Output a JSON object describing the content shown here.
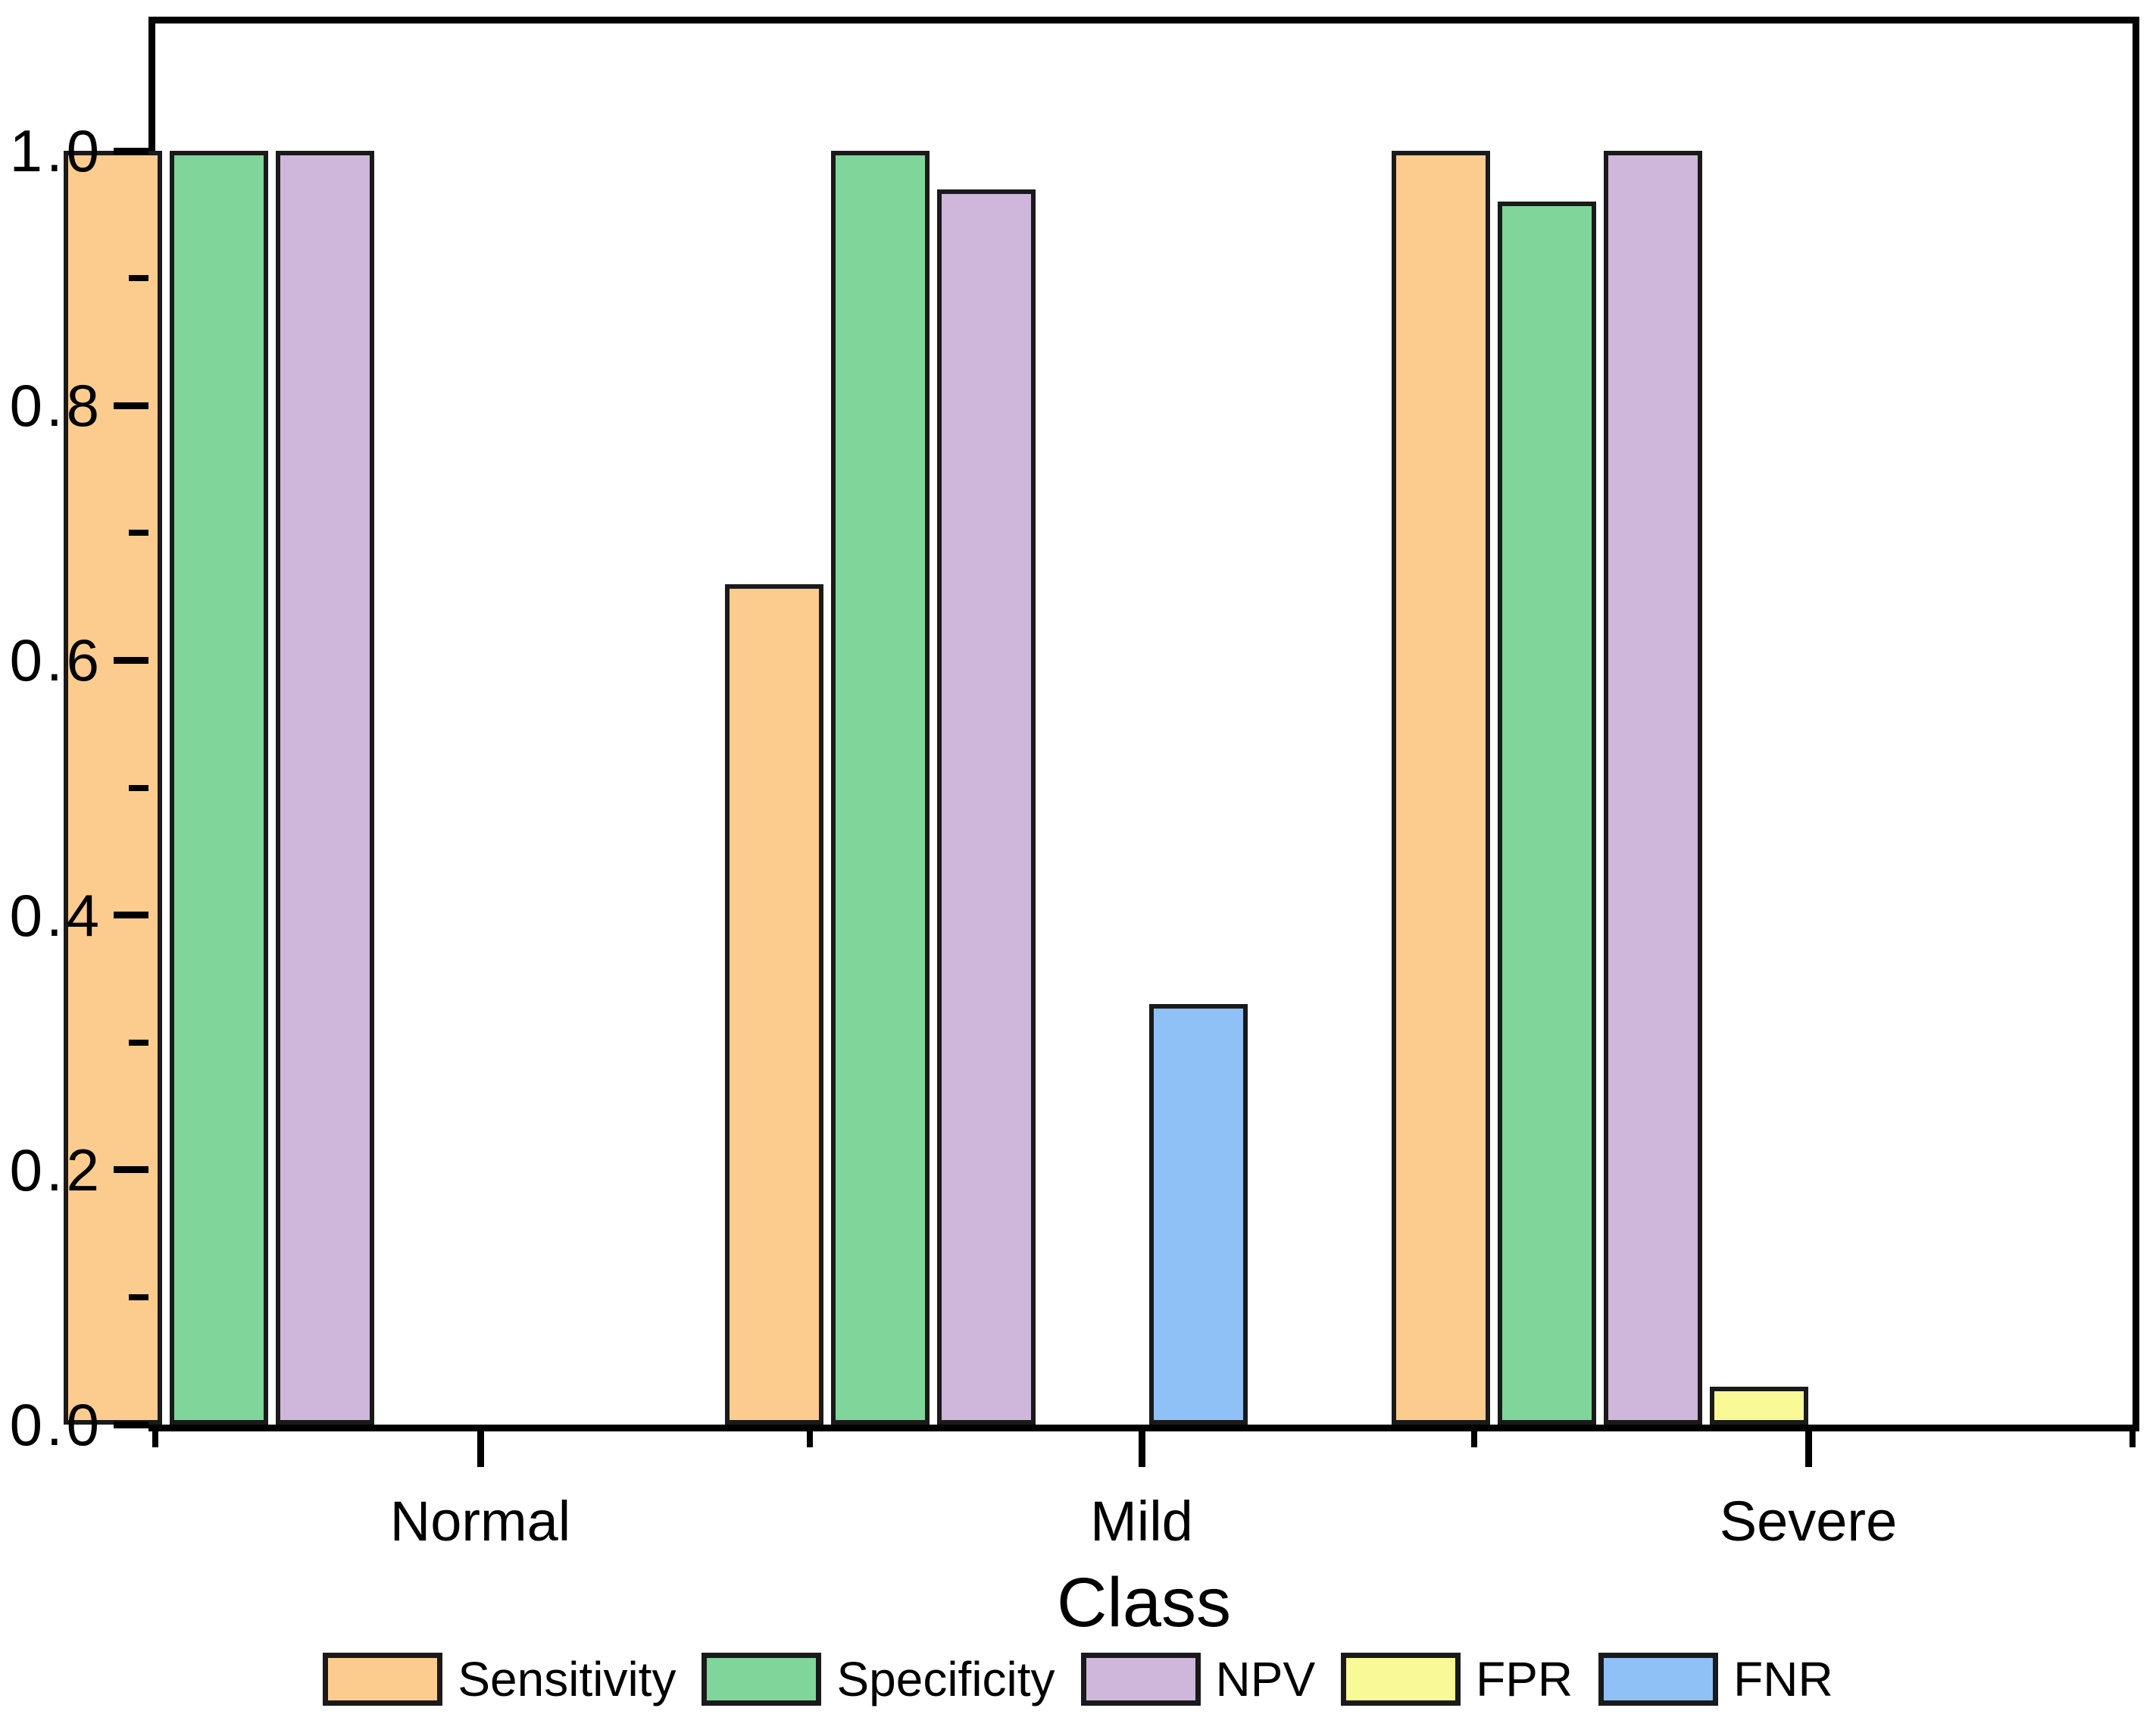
{
  "chart_data": {
    "type": "bar",
    "title": "",
    "xlabel": "Class",
    "ylabel": "",
    "categories": [
      "Normal",
      "Mild",
      "Severe"
    ],
    "series": [
      {
        "name": "Sensitivity",
        "color": "#FBCC8E",
        "values": [
          1.0,
          0.66,
          1.0
        ]
      },
      {
        "name": "Specificity",
        "color": "#80D59B",
        "values": [
          1.0,
          1.0,
          0.96
        ]
      },
      {
        "name": "NPV",
        "color": "#CFB7DC",
        "values": [
          1.0,
          0.97,
          1.0
        ]
      },
      {
        "name": "FPR",
        "color": "#F9F997",
        "values": [
          0,
          0,
          0.03
        ]
      },
      {
        "name": "FNR",
        "color": "#8FC0F6",
        "values": [
          0,
          0.33,
          0
        ]
      }
    ],
    "ylim": [
      0,
      1.1
    ],
    "ytick_labels": [
      "0.0",
      "0.2",
      "0.4",
      "0.6",
      "0.8",
      "1.0"
    ],
    "ytick_values": [
      0.0,
      0.2,
      0.4,
      0.6,
      0.8,
      1.0
    ],
    "yminor_values": [
      0.1,
      0.3,
      0.5,
      0.7,
      0.9
    ],
    "grid": false,
    "legend_position": "bottom",
    "axis_color": "#000000",
    "bar_outline_color": "#1a1a1a"
  }
}
